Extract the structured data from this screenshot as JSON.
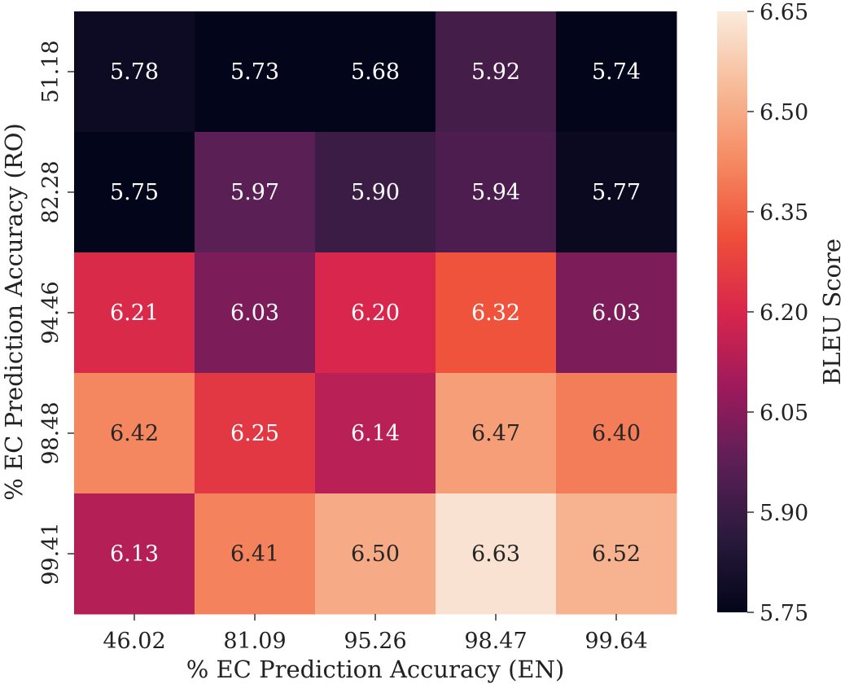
{
  "chart_data": {
    "type": "heatmap",
    "xlabel": "% EC Prediction Accuracy (EN)",
    "ylabel": "% EC Prediction Accuracy (RO)",
    "x_categories": [
      "46.02",
      "81.09",
      "95.26",
      "98.47",
      "99.64"
    ],
    "y_categories": [
      "51.18",
      "82.28",
      "94.46",
      "98.48",
      "99.41"
    ],
    "values": [
      [
        5.78,
        5.73,
        5.68,
        5.92,
        5.74
      ],
      [
        5.75,
        5.97,
        5.9,
        5.94,
        5.77
      ],
      [
        6.21,
        6.03,
        6.2,
        6.32,
        6.03
      ],
      [
        6.42,
        6.25,
        6.14,
        6.47,
        6.4
      ],
      [
        6.13,
        6.41,
        6.5,
        6.63,
        6.52
      ]
    ],
    "cell_labels": [
      [
        "5.78",
        "5.73",
        "5.68",
        "5.92",
        "5.74"
      ],
      [
        "5.75",
        "5.97",
        "5.90",
        "5.94",
        "5.77"
      ],
      [
        "6.21",
        "6.03",
        "6.20",
        "6.32",
        "6.03"
      ],
      [
        "6.42",
        "6.25",
        "6.14",
        "6.47",
        "6.40"
      ],
      [
        "6.13",
        "6.41",
        "6.50",
        "6.63",
        "6.52"
      ]
    ],
    "colorbar": {
      "label": "BLEU Score",
      "range": [
        5.75,
        6.65
      ],
      "ticks": [
        "5.75",
        "5.90",
        "6.05",
        "6.20",
        "6.35",
        "6.50",
        "6.65"
      ],
      "colormap": "rocket",
      "colors": [
        "#03051a",
        "#2a1a3c",
        "#5c1f56",
        "#9e1a5c",
        "#d8264c",
        "#ef4f39",
        "#f58a62",
        "#f7bb98",
        "#faebdd"
      ]
    },
    "legend_position": "right",
    "grid": false
  }
}
